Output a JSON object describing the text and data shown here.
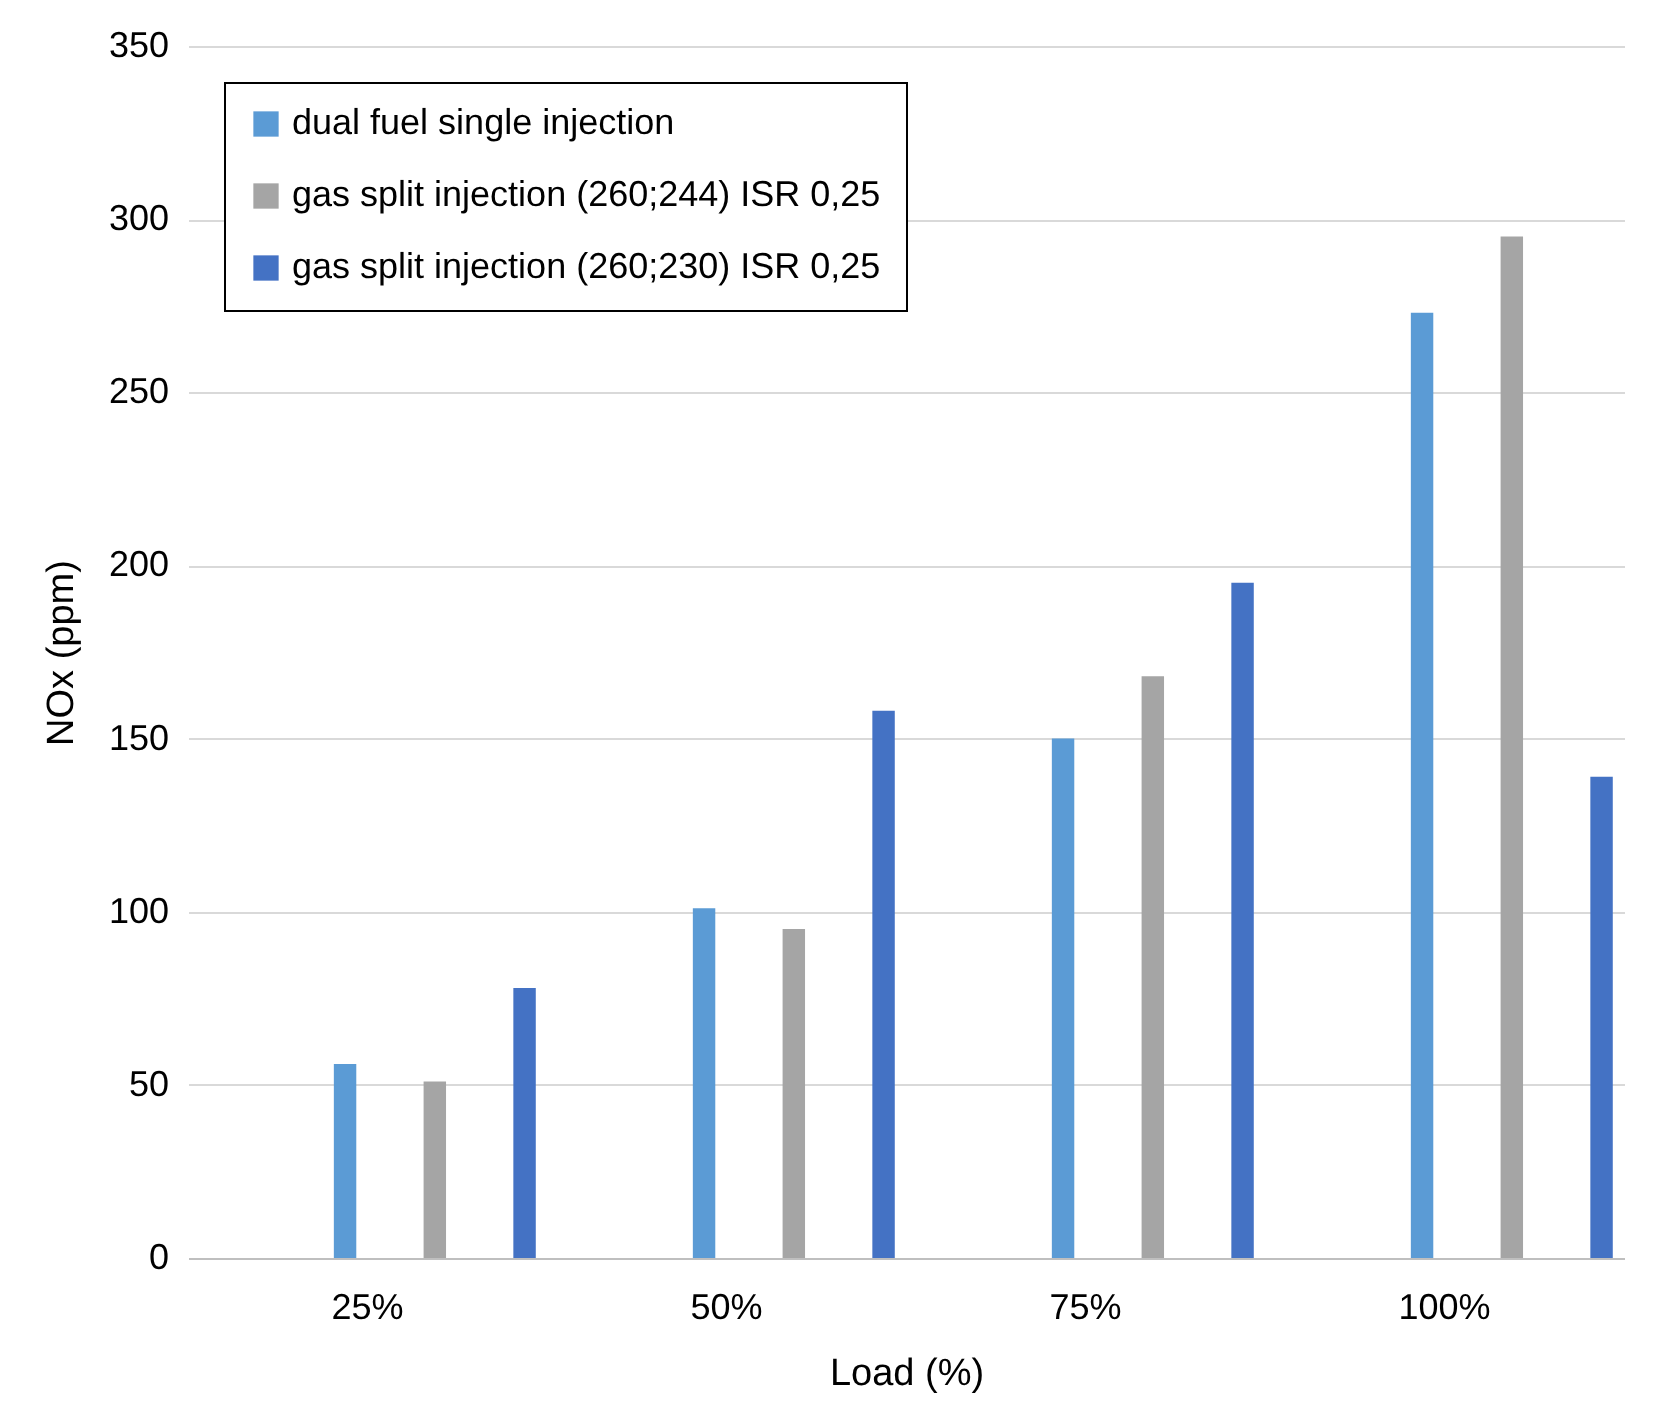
{
  "chart_data": {
    "type": "bar",
    "xlabel": "Load (%)",
    "ylabel": "NOx (ppm)",
    "categories": [
      "25%",
      "50%",
      "75%",
      "100%"
    ],
    "series": [
      {
        "name": "dual fuel single injection",
        "color": "#5b9bd5",
        "values": [
          56,
          101,
          150,
          273
        ]
      },
      {
        "name": "gas split injection (260;244) ISR 0,25",
        "color": "#a5a5a5",
        "values": [
          51,
          95,
          168,
          295
        ]
      },
      {
        "name": "gas split injection (260;230) ISR 0,25",
        "color": "#4472c4",
        "values": [
          78,
          158,
          195,
          139
        ]
      }
    ],
    "ylim": [
      0,
      350
    ],
    "yticks": [
      0,
      50,
      100,
      150,
      200,
      250,
      300,
      350
    ],
    "grid": "y",
    "legend": "top left"
  }
}
